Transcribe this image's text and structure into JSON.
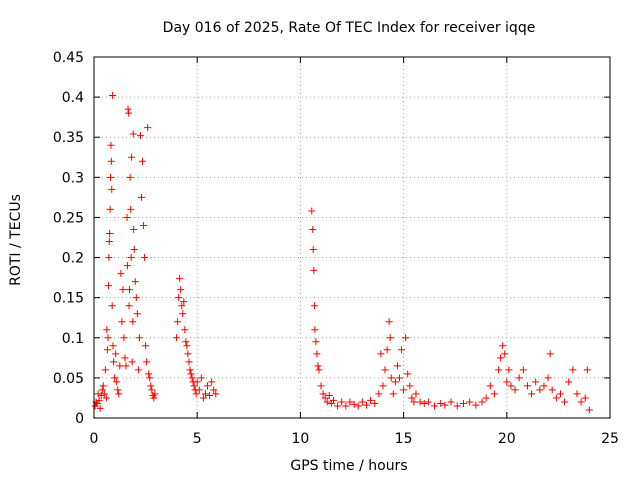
{
  "chart_data": {
    "type": "scatter",
    "title": "Day 016 of 2025, Rate Of TEC Index for receiver iqqe",
    "xlabel": "GPS time / hours",
    "ylabel": "ROTI / TECUs",
    "xlim": [
      0,
      25
    ],
    "ylim": [
      0,
      0.45
    ],
    "xticks": [
      0,
      5,
      10,
      15,
      20,
      25
    ],
    "xtick_labels": [
      "0",
      "5",
      "10",
      "15",
      "20",
      "25"
    ],
    "yticks": [
      0,
      0.05,
      0.1,
      0.15,
      0.2,
      0.25,
      0.3,
      0.35,
      0.4,
      0.45
    ],
    "ytick_labels": [
      "0",
      "0.05",
      "0.1",
      "0.15",
      "0.2",
      "0.25",
      "0.3",
      "0.35",
      "0.4",
      "0.45"
    ],
    "grid": true,
    "marker": "+",
    "marker_color": "#ff0000",
    "series": [
      {
        "points": [
          [
            0.05,
            0.015
          ],
          [
            0.1,
            0.02
          ],
          [
            0.15,
            0.018
          ],
          [
            0.2,
            0.03
          ],
          [
            0.25,
            0.022
          ],
          [
            0.3,
            0.012
          ],
          [
            0.35,
            0.028
          ],
          [
            0.4,
            0.035
          ],
          [
            0.45,
            0.04
          ],
          [
            0.5,
            0.03
          ],
          [
            0.55,
            0.06
          ],
          [
            0.6,
            0.025
          ],
          [
            0.62,
            0.11
          ],
          [
            0.65,
            0.085
          ],
          [
            0.68,
            0.1
          ],
          [
            0.7,
            0.165
          ],
          [
            0.72,
            0.2
          ],
          [
            0.74,
            0.22
          ],
          [
            0.76,
            0.23
          ],
          [
            0.78,
            0.26
          ],
          [
            0.8,
            0.3
          ],
          [
            0.82,
            0.34
          ],
          [
            0.84,
            0.32
          ],
          [
            0.86,
            0.285
          ],
          [
            0.88,
            0.14
          ],
          [
            0.9,
            0.402
          ],
          [
            0.92,
            0.09
          ],
          [
            0.95,
            0.07
          ],
          [
            1.0,
            0.05
          ],
          [
            1.05,
            0.08
          ],
          [
            1.1,
            0.045
          ],
          [
            1.15,
            0.035
          ],
          [
            1.2,
            0.03
          ],
          [
            1.25,
            0.065
          ],
          [
            1.3,
            0.18
          ],
          [
            1.35,
            0.12
          ],
          [
            1.4,
            0.16
          ],
          [
            1.45,
            0.1
          ],
          [
            1.5,
            0.075
          ],
          [
            1.55,
            0.065
          ],
          [
            1.6,
            0.25
          ],
          [
            1.62,
            0.19
          ],
          [
            1.65,
            0.385
          ],
          [
            1.68,
            0.38
          ],
          [
            1.7,
            0.14
          ],
          [
            1.72,
            0.16
          ],
          [
            1.75,
            0.3
          ],
          [
            1.78,
            0.26
          ],
          [
            1.8,
            0.2
          ],
          [
            1.82,
            0.325
          ],
          [
            1.85,
            0.07
          ],
          [
            1.88,
            0.12
          ],
          [
            1.9,
            0.354
          ],
          [
            1.92,
            0.235
          ],
          [
            1.95,
            0.21
          ],
          [
            2.0,
            0.17
          ],
          [
            2.05,
            0.15
          ],
          [
            2.1,
            0.13
          ],
          [
            2.15,
            0.06
          ],
          [
            2.2,
            0.1
          ],
          [
            2.25,
            0.352
          ],
          [
            2.3,
            0.275
          ],
          [
            2.35,
            0.32
          ],
          [
            2.4,
            0.24
          ],
          [
            2.45,
            0.2
          ],
          [
            2.5,
            0.09
          ],
          [
            2.55,
            0.07
          ],
          [
            2.6,
            0.362
          ],
          [
            2.65,
            0.055
          ],
          [
            2.7,
            0.05
          ],
          [
            2.75,
            0.04
          ],
          [
            2.8,
            0.035
          ],
          [
            2.85,
            0.028
          ],
          [
            2.9,
            0.025
          ],
          [
            2.95,
            0.03
          ],
          [
            4.0,
            0.1
          ],
          [
            4.05,
            0.12
          ],
          [
            4.1,
            0.15
          ],
          [
            4.15,
            0.174
          ],
          [
            4.2,
            0.16
          ],
          [
            4.25,
            0.14
          ],
          [
            4.3,
            0.13
          ],
          [
            4.35,
            0.145
          ],
          [
            4.4,
            0.11
          ],
          [
            4.45,
            0.095
          ],
          [
            4.5,
            0.09
          ],
          [
            4.55,
            0.08
          ],
          [
            4.6,
            0.07
          ],
          [
            4.65,
            0.06
          ],
          [
            4.7,
            0.055
          ],
          [
            4.75,
            0.05
          ],
          [
            4.8,
            0.045
          ],
          [
            4.85,
            0.04
          ],
          [
            4.9,
            0.035
          ],
          [
            4.95,
            0.03
          ],
          [
            5.0,
            0.045
          ],
          [
            5.1,
            0.035
          ],
          [
            5.2,
            0.05
          ],
          [
            5.3,
            0.025
          ],
          [
            5.4,
            0.03
          ],
          [
            5.5,
            0.04
          ],
          [
            5.6,
            0.028
          ],
          [
            5.7,
            0.045
          ],
          [
            5.8,
            0.035
          ],
          [
            5.9,
            0.03
          ],
          [
            10.55,
            0.258
          ],
          [
            10.6,
            0.235
          ],
          [
            10.62,
            0.21
          ],
          [
            10.65,
            0.184
          ],
          [
            10.68,
            0.14
          ],
          [
            10.7,
            0.11
          ],
          [
            10.75,
            0.095
          ],
          [
            10.8,
            0.08
          ],
          [
            10.85,
            0.065
          ],
          [
            10.9,
            0.06
          ],
          [
            11.0,
            0.04
          ],
          [
            11.1,
            0.03
          ],
          [
            11.2,
            0.025
          ],
          [
            11.3,
            0.02
          ],
          [
            11.4,
            0.028
          ],
          [
            11.5,
            0.018
          ],
          [
            11.6,
            0.022
          ],
          [
            11.8,
            0.015
          ],
          [
            12.0,
            0.02
          ],
          [
            12.2,
            0.015
          ],
          [
            12.4,
            0.02
          ],
          [
            12.6,
            0.017
          ],
          [
            12.8,
            0.015
          ],
          [
            13.0,
            0.02
          ],
          [
            13.2,
            0.016
          ],
          [
            13.4,
            0.022
          ],
          [
            13.6,
            0.018
          ],
          [
            13.8,
            0.03
          ],
          [
            13.9,
            0.08
          ],
          [
            14.0,
            0.04
          ],
          [
            14.1,
            0.06
          ],
          [
            14.2,
            0.085
          ],
          [
            14.3,
            0.12
          ],
          [
            14.35,
            0.1
          ],
          [
            14.4,
            0.05
          ],
          [
            14.5,
            0.03
          ],
          [
            14.6,
            0.045
          ],
          [
            14.7,
            0.065
          ],
          [
            14.8,
            0.05
          ],
          [
            14.9,
            0.085
          ],
          [
            15.0,
            0.035
          ],
          [
            15.1,
            0.1
          ],
          [
            15.2,
            0.055
          ],
          [
            15.3,
            0.04
          ],
          [
            15.4,
            0.025
          ],
          [
            15.5,
            0.02
          ],
          [
            15.6,
            0.03
          ],
          [
            15.8,
            0.02
          ],
          [
            16.0,
            0.018
          ],
          [
            16.2,
            0.02
          ],
          [
            16.5,
            0.015
          ],
          [
            16.8,
            0.018
          ],
          [
            17.0,
            0.016
          ],
          [
            17.3,
            0.02
          ],
          [
            17.6,
            0.015
          ],
          [
            17.9,
            0.018
          ],
          [
            18.2,
            0.02
          ],
          [
            18.5,
            0.016
          ],
          [
            18.8,
            0.02
          ],
          [
            19.0,
            0.025
          ],
          [
            19.2,
            0.04
          ],
          [
            19.4,
            0.03
          ],
          [
            19.6,
            0.06
          ],
          [
            19.7,
            0.075
          ],
          [
            19.8,
            0.09
          ],
          [
            19.9,
            0.08
          ],
          [
            20.0,
            0.045
          ],
          [
            20.1,
            0.06
          ],
          [
            20.2,
            0.04
          ],
          [
            20.4,
            0.035
          ],
          [
            20.6,
            0.05
          ],
          [
            20.8,
            0.06
          ],
          [
            21.0,
            0.04
          ],
          [
            21.2,
            0.03
          ],
          [
            21.4,
            0.045
          ],
          [
            21.6,
            0.035
          ],
          [
            21.8,
            0.04
          ],
          [
            22.0,
            0.05
          ],
          [
            22.1,
            0.08
          ],
          [
            22.2,
            0.035
          ],
          [
            22.4,
            0.025
          ],
          [
            22.6,
            0.03
          ],
          [
            22.8,
            0.02
          ],
          [
            23.0,
            0.045
          ],
          [
            23.2,
            0.06
          ],
          [
            23.4,
            0.03
          ],
          [
            23.6,
            0.02
          ],
          [
            23.8,
            0.025
          ],
          [
            23.9,
            0.06
          ],
          [
            24.0,
            0.01
          ]
        ]
      }
    ]
  }
}
